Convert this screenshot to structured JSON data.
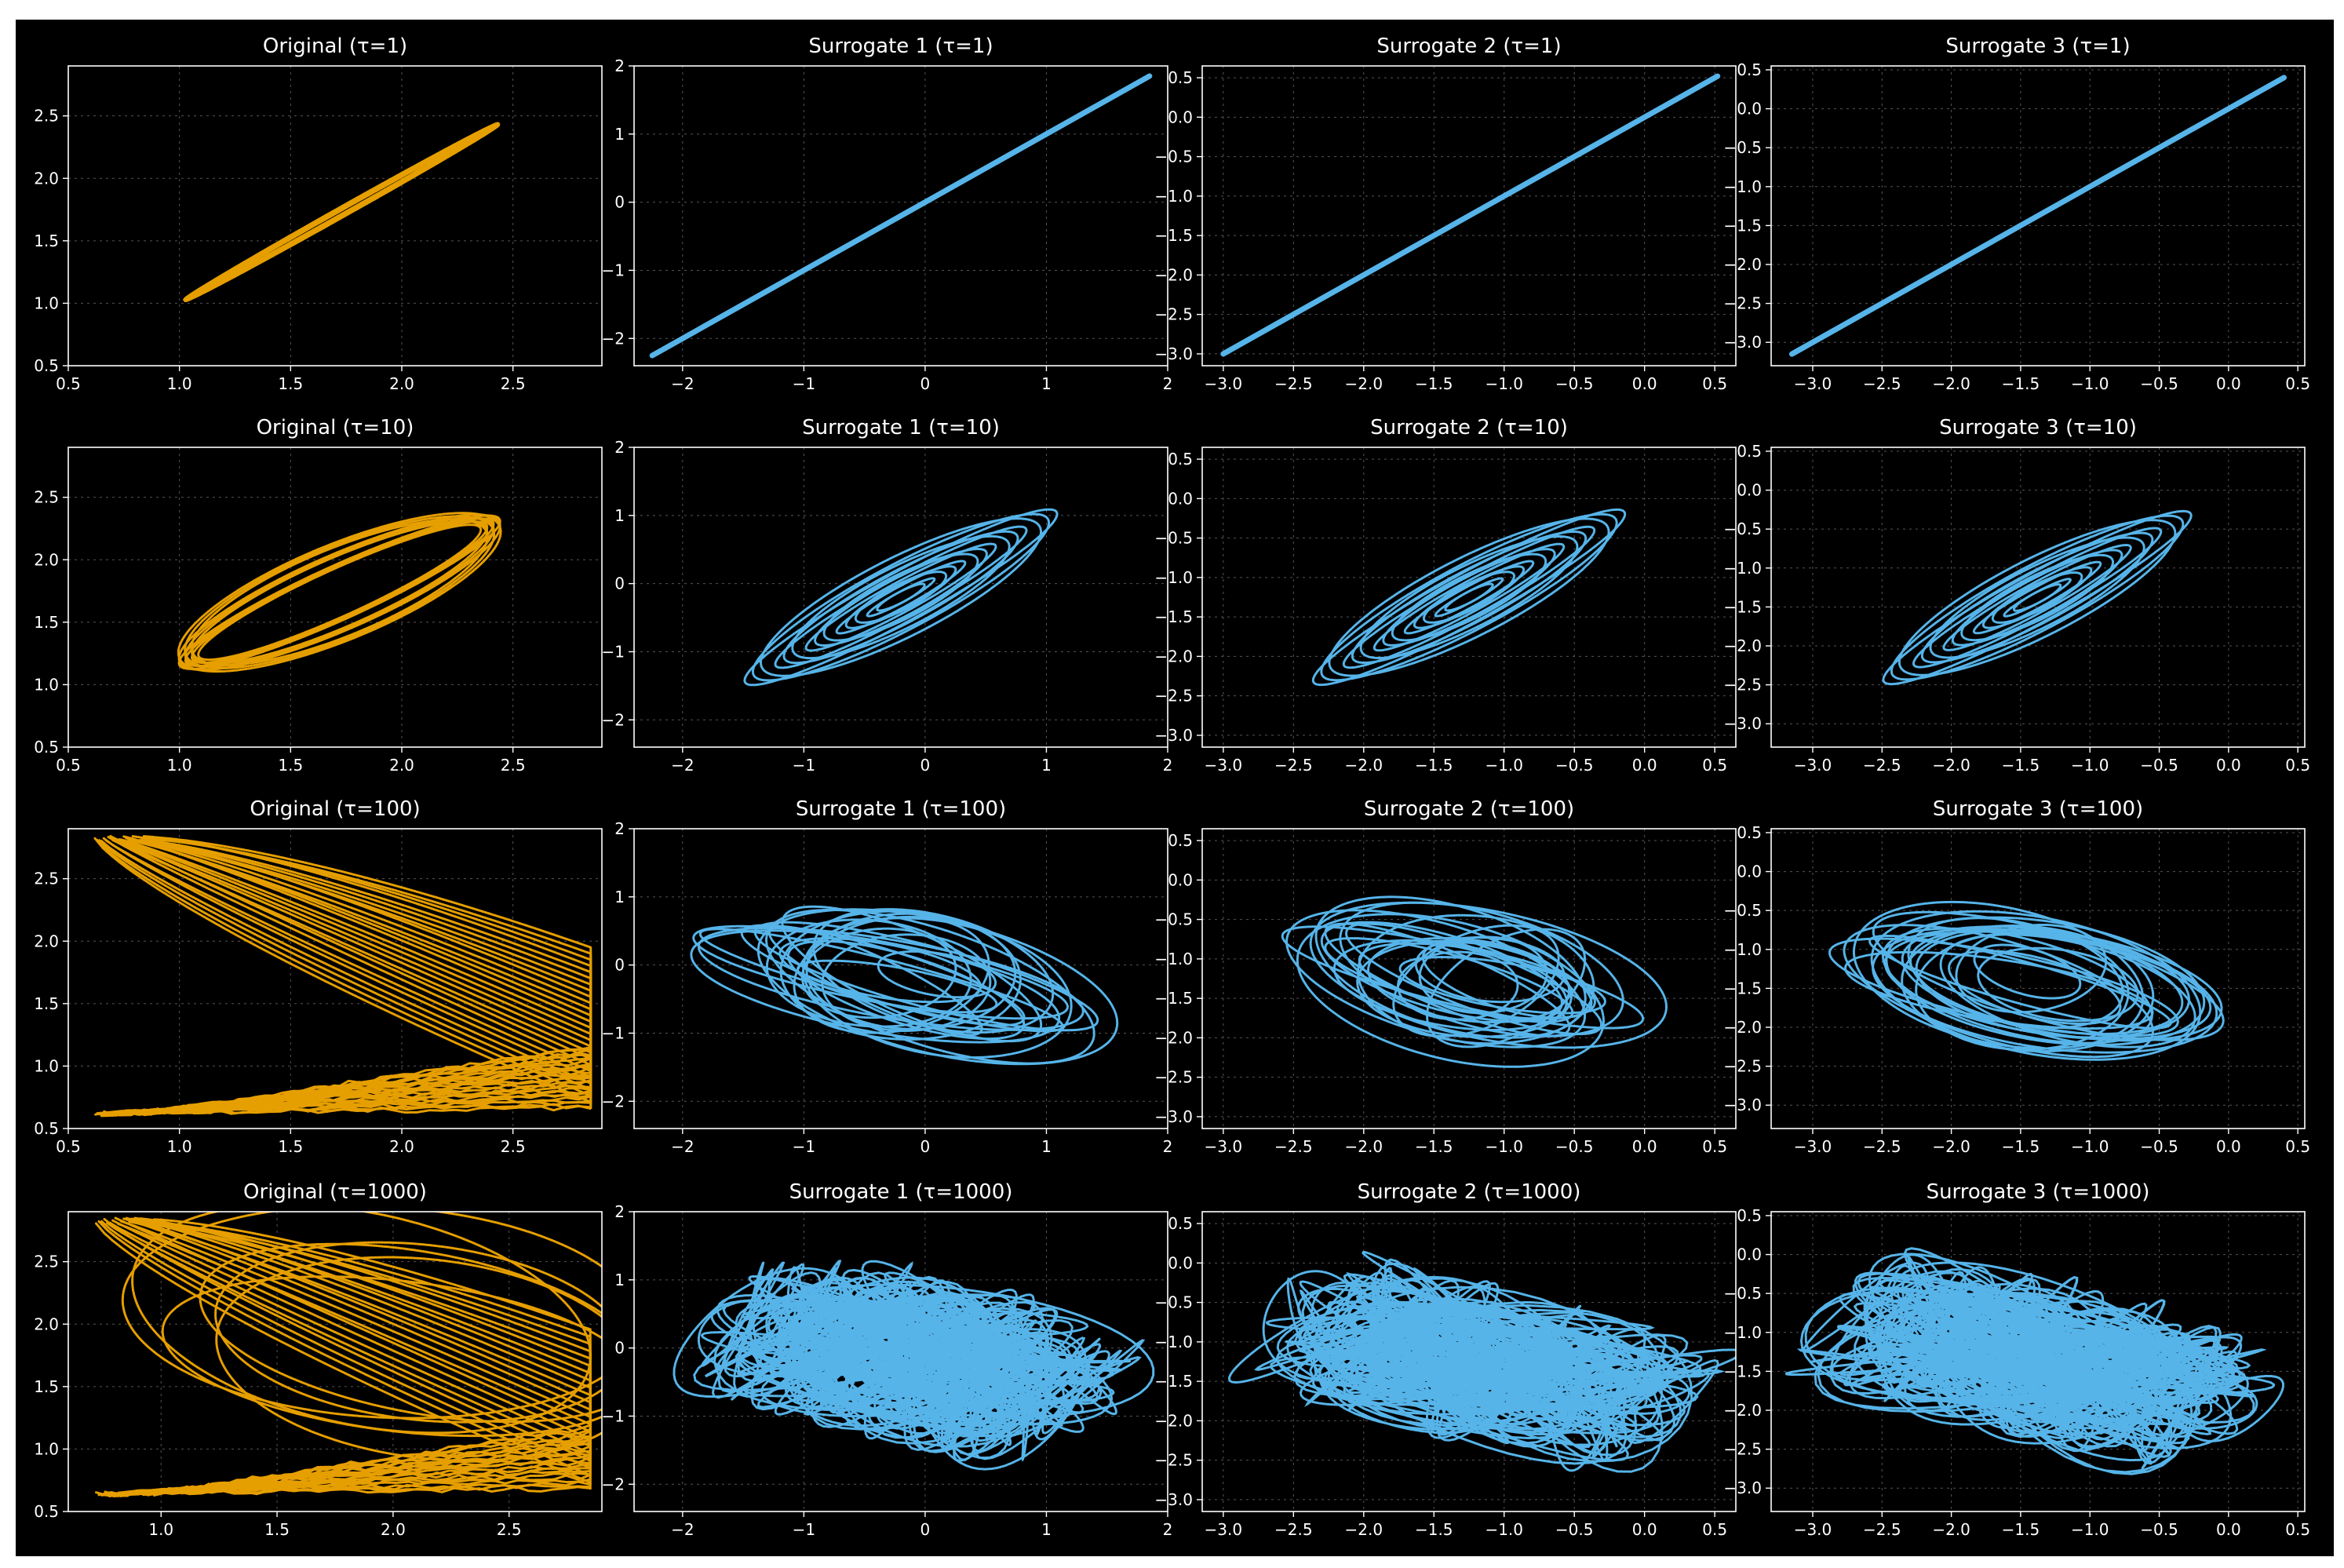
{
  "colors": {
    "original": "#E69F00",
    "surrogate": "#56B4E9",
    "background": "#000000",
    "text": "#ffffff"
  },
  "chart_data": [
    {
      "type": "scatter",
      "row": 0,
      "col": 0,
      "title": "Original (τ=1)",
      "series": "original",
      "xlim": [
        0.5,
        2.9
      ],
      "ylim": [
        0.5,
        2.9
      ],
      "xticks": [
        "0.5",
        "1.0",
        "1.5",
        "2.0",
        "2.5"
      ],
      "yticks": [
        "0.5",
        "1.0",
        "1.5",
        "2.0",
        "2.5"
      ],
      "shape": {
        "kind": "ellipse",
        "cx": 1.73,
        "cy": 1.73,
        "a": 1.6,
        "b": 0.025,
        "rot": 45,
        "rings": 2
      }
    },
    {
      "type": "scatter",
      "row": 0,
      "col": 1,
      "title": "Surrogate 1 (τ=1)",
      "series": "surrogate",
      "xlim": [
        -2.4,
        2.0
      ],
      "ylim": [
        -2.4,
        2.0
      ],
      "xticks": [
        "−2",
        "−1",
        "0",
        "1",
        "2"
      ],
      "yticks": [
        "−2",
        "−1",
        "0",
        "1",
        "2"
      ],
      "shape": {
        "kind": "line",
        "x0": -2.25,
        "x1": 1.85
      }
    },
    {
      "type": "scatter",
      "row": 0,
      "col": 2,
      "title": "Surrogate 2 (τ=1)",
      "series": "surrogate",
      "xlim": [
        -3.15,
        0.65
      ],
      "ylim": [
        -3.15,
        0.65
      ],
      "xticks": [
        "−3.0",
        "−2.5",
        "−2.0",
        "−1.5",
        "−1.0",
        "−0.5",
        "0.0",
        "0.5"
      ],
      "yticks": [
        "−3.0",
        "−2.5",
        "−2.0",
        "−1.5",
        "−1.0",
        "−0.5",
        "0.0",
        "0.5"
      ],
      "shape": {
        "kind": "line",
        "x0": -3.0,
        "x1": 0.52
      }
    },
    {
      "type": "scatter",
      "row": 0,
      "col": 3,
      "title": "Surrogate 3 (τ=1)",
      "series": "surrogate",
      "xlim": [
        -3.3,
        0.55
      ],
      "ylim": [
        -3.3,
        0.55
      ],
      "xticks": [
        "−3.0",
        "−2.5",
        "−2.0",
        "−1.5",
        "−1.0",
        "−0.5",
        "0.0",
        "0.5"
      ],
      "yticks": [
        "−3.0",
        "−2.5",
        "−2.0",
        "−1.5",
        "−1.0",
        "−0.5",
        "0.0",
        "0.5"
      ],
      "shape": {
        "kind": "line",
        "x0": -3.15,
        "x1": 0.4
      }
    },
    {
      "type": "scatter",
      "row": 1,
      "col": 0,
      "title": "Original (τ=10)",
      "series": "original",
      "xlim": [
        0.5,
        2.9
      ],
      "ylim": [
        0.5,
        2.9
      ],
      "xticks": [
        "0.5",
        "1.0",
        "1.5",
        "2.0",
        "2.5"
      ],
      "yticks": [
        "0.5",
        "1.0",
        "1.5",
        "2.0",
        "2.5"
      ],
      "shape": {
        "kind": "ellipse",
        "cx": 1.72,
        "cy": 1.74,
        "a": 1.5,
        "b": 0.26,
        "rot": 40,
        "rings": 10,
        "spread": 0.12
      }
    },
    {
      "type": "scatter",
      "row": 1,
      "col": 1,
      "title": "Surrogate 1 (τ=10)",
      "series": "surrogate",
      "xlim": [
        -2.4,
        2.0
      ],
      "ylim": [
        -2.4,
        2.0
      ],
      "xticks": [
        "−2",
        "−1",
        "0",
        "1",
        "2"
      ],
      "yticks": [
        "−2",
        "−1",
        "0",
        "1",
        "2"
      ],
      "shape": {
        "kind": "ellipse",
        "cx": -0.2,
        "cy": -0.2,
        "a": 2.9,
        "b": 0.42,
        "rot": 45,
        "rings": 14,
        "spread": 0.85
      }
    },
    {
      "type": "scatter",
      "row": 1,
      "col": 2,
      "title": "Surrogate 2 (τ=10)",
      "series": "surrogate",
      "xlim": [
        -3.15,
        0.65
      ],
      "ylim": [
        -3.15,
        0.65
      ],
      "xticks": [
        "−3.0",
        "−2.5",
        "−2.0",
        "−1.5",
        "−1.0",
        "−0.5",
        "0.0",
        "0.5"
      ],
      "yticks": [
        "−3.0",
        "−2.5",
        "−2.0",
        "−1.5",
        "−1.0",
        "−0.5",
        "0.0",
        "0.5"
      ],
      "shape": {
        "kind": "ellipse",
        "cx": -1.25,
        "cy": -1.25,
        "a": 2.5,
        "b": 0.36,
        "rot": 45,
        "rings": 14,
        "spread": 0.85
      }
    },
    {
      "type": "scatter",
      "row": 1,
      "col": 3,
      "title": "Surrogate 3 (τ=10)",
      "series": "surrogate",
      "xlim": [
        -3.3,
        0.55
      ],
      "ylim": [
        -3.3,
        0.55
      ],
      "xticks": [
        "−3.0",
        "−2.5",
        "−2.0",
        "−1.5",
        "−1.0",
        "−0.5",
        "0.0",
        "0.5"
      ],
      "yticks": [
        "−3.0",
        "−2.5",
        "−2.0",
        "−1.5",
        "−1.0",
        "−0.5",
        "0.0",
        "0.5"
      ],
      "shape": {
        "kind": "ellipse",
        "cx": -1.38,
        "cy": -1.38,
        "a": 2.5,
        "b": 0.36,
        "rot": 45,
        "rings": 14,
        "spread": 0.85
      }
    },
    {
      "type": "scatter",
      "row": 2,
      "col": 0,
      "title": "Original (τ=100)",
      "series": "original",
      "xlim": [
        0.5,
        2.9
      ],
      "ylim": [
        0.5,
        2.9
      ],
      "xticks": [
        "0.5",
        "1.0",
        "1.5",
        "2.0",
        "2.5"
      ],
      "yticks": [
        "0.5",
        "1.0",
        "1.5",
        "2.0",
        "2.5"
      ],
      "shape": {
        "kind": "fan",
        "x0": 0.62,
        "x1": 2.85,
        "ymin": 0.6,
        "ymax": 2.85,
        "n": 26
      }
    },
    {
      "type": "scatter",
      "row": 2,
      "col": 1,
      "title": "Surrogate 1 (τ=100)",
      "series": "surrogate",
      "xlim": [
        -2.4,
        2.0
      ],
      "ylim": [
        -2.4,
        2.0
      ],
      "xticks": [
        "−2",
        "−1",
        "0",
        "1",
        "2"
      ],
      "yticks": [
        "−2",
        "−1",
        "0",
        "1",
        "2"
      ],
      "shape": {
        "kind": "blob",
        "cx": -0.2,
        "cy": -0.2,
        "rx": 1.9,
        "ry": 1.0,
        "rot": -30,
        "n": 22,
        "seed": 3
      }
    },
    {
      "type": "scatter",
      "row": 2,
      "col": 2,
      "title": "Surrogate 2 (τ=100)",
      "series": "surrogate",
      "xlim": [
        -3.15,
        0.65
      ],
      "ylim": [
        -3.15,
        0.65
      ],
      "xticks": [
        "−3.0",
        "−2.5",
        "−2.0",
        "−1.5",
        "−1.0",
        "−0.5",
        "0.0",
        "0.5"
      ],
      "yticks": [
        "−3.0",
        "−2.5",
        "−2.0",
        "−1.5",
        "−1.0",
        "−0.5",
        "0.0",
        "0.5"
      ],
      "shape": {
        "kind": "blob",
        "cx": -1.25,
        "cy": -1.25,
        "rx": 1.6,
        "ry": 0.9,
        "rot": -28,
        "n": 22,
        "seed": 7
      }
    },
    {
      "type": "scatter",
      "row": 2,
      "col": 3,
      "title": "Surrogate 3 (τ=100)",
      "series": "surrogate",
      "xlim": [
        -3.3,
        0.55
      ],
      "ylim": [
        -3.3,
        0.55
      ],
      "xticks": [
        "−3.0",
        "−2.5",
        "−2.0",
        "−1.5",
        "−1.0",
        "−0.5",
        "0.0",
        "0.5"
      ],
      "yticks": [
        "−3.0",
        "−2.5",
        "−2.0",
        "−1.5",
        "−1.0",
        "−0.5",
        "0.0",
        "0.5"
      ],
      "shape": {
        "kind": "blob",
        "cx": -1.4,
        "cy": -1.4,
        "rx": 1.6,
        "ry": 0.9,
        "rot": -28,
        "n": 22,
        "seed": 11
      }
    },
    {
      "type": "scatter",
      "row": 3,
      "col": 0,
      "title": "Original (τ=1000)",
      "series": "original",
      "xlim": [
        0.6,
        2.9
      ],
      "ylim": [
        0.5,
        2.9
      ],
      "xticks": [
        "1.0",
        "1.5",
        "2.0",
        "2.5"
      ],
      "yticks": [
        "0.5",
        "1.0",
        "1.5",
        "2.0",
        "2.5"
      ],
      "shape": {
        "kind": "fanloops",
        "x0": 0.72,
        "x1": 2.85,
        "ymin": 0.62,
        "ymax": 2.85,
        "n": 22,
        "seed": 5
      }
    },
    {
      "type": "scatter",
      "row": 3,
      "col": 1,
      "title": "Surrogate 1 (τ=1000)",
      "series": "surrogate",
      "xlim": [
        -2.4,
        2.0
      ],
      "ylim": [
        -2.4,
        2.0
      ],
      "xticks": [
        "−2",
        "−1",
        "0",
        "1",
        "2"
      ],
      "yticks": [
        "−2",
        "−1",
        "0",
        "1",
        "2"
      ],
      "shape": {
        "kind": "tangle",
        "cx": -0.1,
        "cy": -0.15,
        "rx": 1.9,
        "ry": 1.2,
        "rot": -25,
        "n": 70,
        "seed": 13
      }
    },
    {
      "type": "scatter",
      "row": 3,
      "col": 2,
      "title": "Surrogate 2 (τ=1000)",
      "series": "surrogate",
      "xlim": [
        -3.15,
        0.65
      ],
      "ylim": [
        -3.15,
        0.65
      ],
      "xticks": [
        "−3.0",
        "−2.5",
        "−2.0",
        "−1.5",
        "−1.0",
        "−0.5",
        "0.0",
        "0.5"
      ],
      "yticks": [
        "−3.0",
        "−2.5",
        "−2.0",
        "−1.5",
        "−1.0",
        "−0.5",
        "0.0",
        "0.5"
      ],
      "shape": {
        "kind": "tangle",
        "cx": -1.2,
        "cy": -1.25,
        "rx": 1.7,
        "ry": 1.0,
        "rot": -25,
        "n": 70,
        "seed": 17
      }
    },
    {
      "type": "scatter",
      "row": 3,
      "col": 3,
      "title": "Surrogate 3 (τ=1000)",
      "series": "surrogate",
      "xlim": [
        -3.3,
        0.55
      ],
      "ylim": [
        -3.3,
        0.55
      ],
      "xticks": [
        "−3.0",
        "−2.5",
        "−2.0",
        "−1.5",
        "−1.0",
        "−0.5",
        "0.0",
        "0.5"
      ],
      "yticks": [
        "−3.0",
        "−2.5",
        "−2.0",
        "−1.5",
        "−1.0",
        "−0.5",
        "0.0",
        "0.5"
      ],
      "shape": {
        "kind": "tangle",
        "cx": -1.35,
        "cy": -1.35,
        "rx": 1.7,
        "ry": 1.0,
        "rot": -25,
        "n": 70,
        "seed": 19
      }
    }
  ]
}
